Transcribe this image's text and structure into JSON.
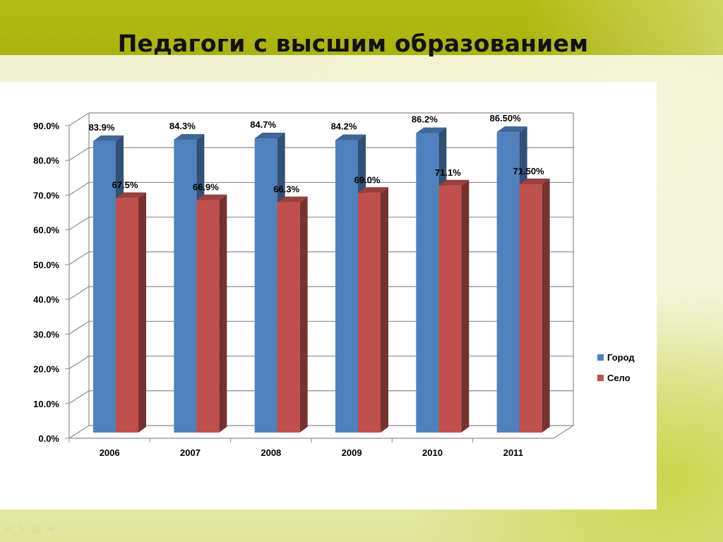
{
  "slide": {
    "title": "Педагоги с высшим образованием"
  },
  "chart_data": {
    "type": "bar",
    "title": "",
    "categories": [
      "2006",
      "2007",
      "2008",
      "2009",
      "2010",
      "2011"
    ],
    "series": [
      {
        "name": "Город",
        "values": [
          83.9,
          84.3,
          84.7,
          84.2,
          86.2,
          86.5
        ],
        "labels": [
          "83.9%",
          "84.3%",
          "84.7%",
          "84.2%",
          "86.2%",
          "86.50%"
        ],
        "color": "#4f81bd"
      },
      {
        "name": "Село",
        "values": [
          67.5,
          66.9,
          66.3,
          69.0,
          71.1,
          71.5
        ],
        "labels": [
          "67.5%",
          "66.9%",
          "66.3%",
          "69.0%",
          "71.1%",
          "71.50%"
        ],
        "color": "#c0504d"
      }
    ],
    "yticks": [
      "0.0%",
      "10.0%",
      "20.0%",
      "30.0%",
      "40.0%",
      "50.0%",
      "60.0%",
      "70.0%",
      "80.0%",
      "90.0%"
    ],
    "ylim": [
      0,
      90
    ],
    "grid": true,
    "legend": "right",
    "style": "3d-clustered-column"
  },
  "footer": {
    "icons": [
      "arrow-left-icon",
      "pen-icon",
      "slides-icon",
      "arrow-right-icon"
    ]
  }
}
